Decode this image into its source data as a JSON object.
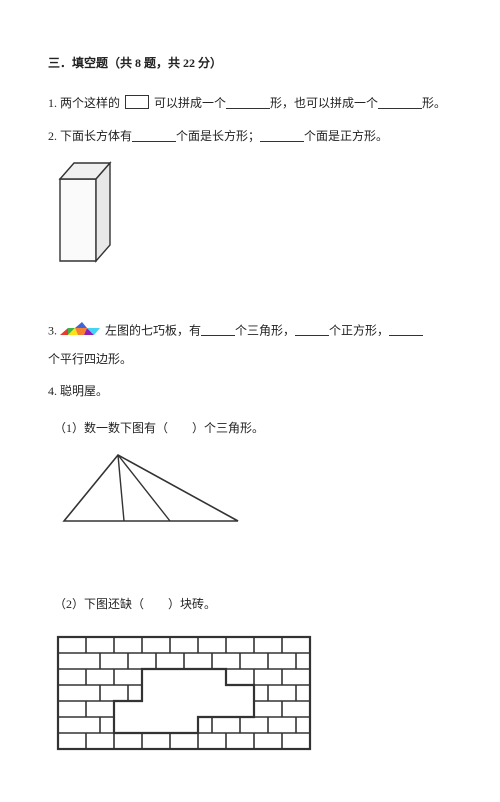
{
  "header": "三．填空题（共 8 题，共 22 分）",
  "q1_a": "1. 两个这样的",
  "q1_b": "可以拼成一个",
  "q1_c": "形，也可以拼成一个",
  "q1_d": "形。",
  "q2_a": "2. 下面长方体有",
  "q2_b": "个面是长方形；",
  "q2_c": "个面是正方形。",
  "q3_a": "3.",
  "q3_b": "左图的七巧板，有",
  "q3_c": "个三角形，",
  "q3_d": "个正方形，",
  "q3_e": "个平行四边形。",
  "q4": "4. 聪明屋。",
  "q4_1": "（1）数一数下图有（　　）个三角形。",
  "q4_2": "（2）下图还缺（　　）块砖。",
  "colors": {
    "text": "#222222",
    "bg": "#ffffff",
    "cuboid_face": "#f5f5f5",
    "tangram": [
      "#e63b2e",
      "#3cb44b",
      "#ffe119",
      "#4363d8",
      "#f58231",
      "#911eb4",
      "#42d4f4"
    ]
  }
}
